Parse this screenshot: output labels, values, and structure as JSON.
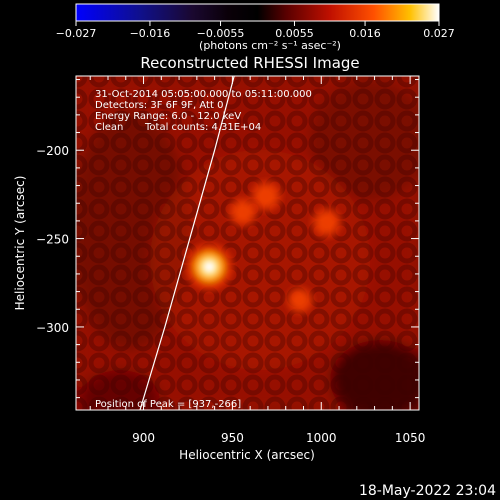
{
  "chart_data": {
    "type": "heatmap",
    "title": "Reconstructed RHESSI Image",
    "xlabel": "Heliocentric X (arcsec)",
    "ylabel": "Heliocentric Y (arcsec)",
    "xlim": [
      862,
      1055
    ],
    "ylim": [
      -347,
      -158
    ],
    "x_ticks": [
      900,
      950,
      1000,
      1050
    ],
    "x_tick_labels": [
      "900",
      "950",
      "1000",
      "1050"
    ],
    "y_ticks": [
      -200,
      -250,
      -300
    ],
    "y_tick_labels": [
      "−200",
      "−250",
      "−300"
    ],
    "colorbar": {
      "min": -0.027,
      "max": 0.027,
      "ticks": [
        -0.027,
        -0.016,
        -0.0055,
        0.0055,
        0.016,
        0.027
      ],
      "tick_labels": [
        "−0.027",
        "−0.016",
        "−0.0055",
        "0.0055",
        "0.016",
        "0.027"
      ],
      "unit_label": "(photons cm⁻² s⁻¹ asec⁻²)",
      "colormap": "hot/blue-black-red-yellow-white"
    },
    "annotations": [
      "31-Oct-2014 05:05:00.000 to 05:11:00.000",
      "Detectors: 3F 6F 9F, Att 0",
      "Energy Range: 6.0 - 12.0 keV",
      "Clean",
      "Total counts: 4.31E+04"
    ],
    "peak_label": "Position of Peak = [937,-266]",
    "peak": {
      "x": 937,
      "y": -266,
      "value": 0.027
    },
    "sources": [
      {
        "x": 937,
        "y": -266,
        "value": 0.027
      },
      {
        "x": 969,
        "y": -226,
        "value": 0.012
      },
      {
        "x": 956,
        "y": -235,
        "value": 0.01
      },
      {
        "x": 1003,
        "y": -241,
        "value": 0.011
      },
      {
        "x": 988,
        "y": -285,
        "value": 0.008
      }
    ],
    "background_level": 0.0035,
    "limb_curve": [
      [
        898,
        -347
      ],
      [
        912,
        -300
      ],
      [
        926,
        -250
      ],
      [
        940,
        -200
      ],
      [
        951,
        -158
      ]
    ],
    "grid": false
  },
  "timestamp": "18-May-2022 23:04"
}
